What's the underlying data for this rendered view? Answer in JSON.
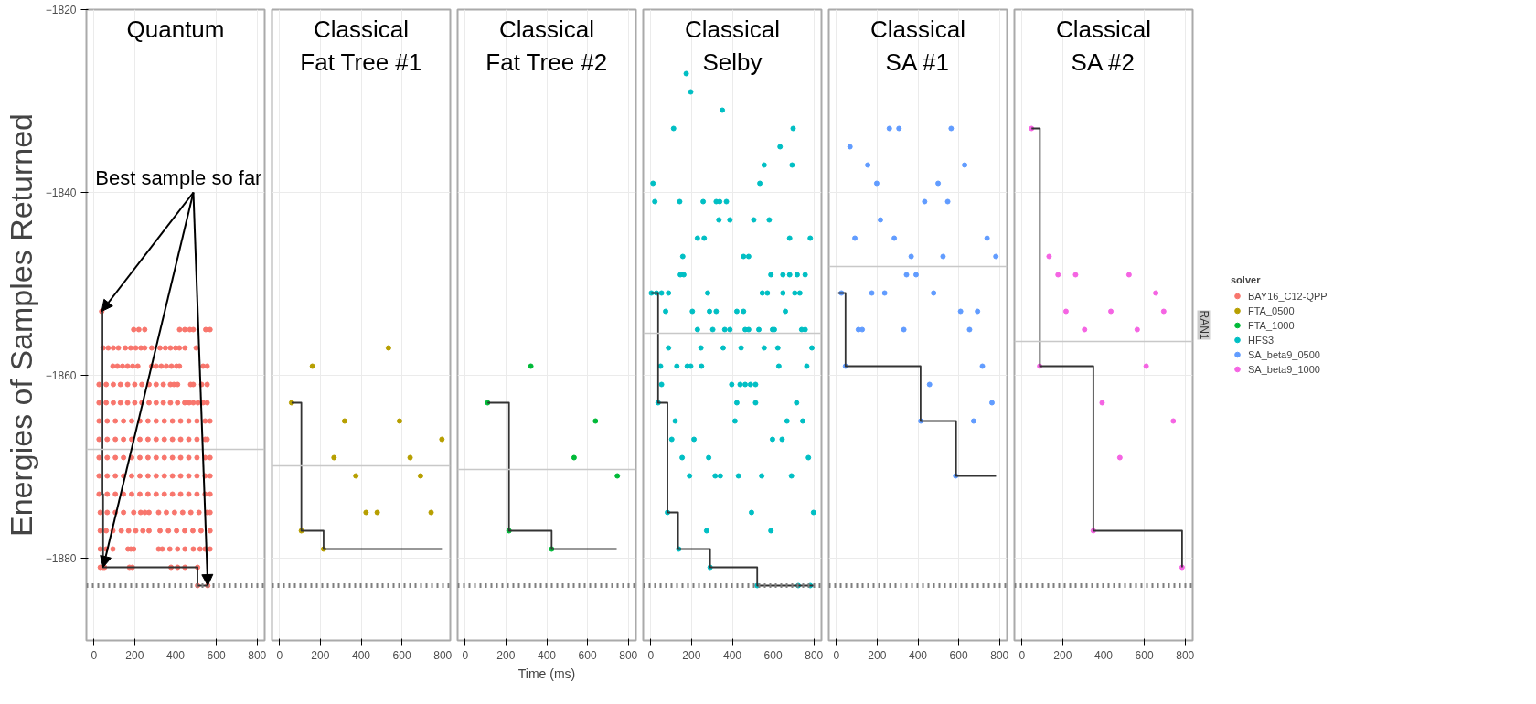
{
  "chart_data": [
    {
      "type": "scatter",
      "title": "Quantum",
      "ylabel": "Energies of Samples Returned",
      "xlim": [
        -37,
        837
      ],
      "ylim": [
        -1889,
        -1820
      ],
      "xticks": [
        0,
        200,
        400,
        600,
        800
      ],
      "yticks": [
        -1820,
        -1840,
        -1860,
        -1880
      ],
      "grid": true,
      "marker": "circle",
      "annotations": [
        {
          "text": "Best sample so far",
          "x": 558,
          "y": -1883
        }
      ],
      "series": [
        {
          "name": "BAY16_C12-QPP",
          "color": "#f8766d",
          "x": [
            38,
            195,
            220,
            249,
            420,
            445,
            470,
            487,
            548,
            569,
            45,
            70,
            95,
            120,
            154,
            180,
            205,
            230,
            249,
            283,
            324,
            350,
            375,
            400,
            419,
            446,
            501,
            93,
            115,
            140,
            165,
            190,
            215,
            283,
            305,
            330,
            355,
            380,
            405,
            419,
            535,
            555,
            25,
            60,
            95,
            130,
            165,
            200,
            235,
            270,
            305,
            340,
            375,
            392,
            410,
            474,
            487,
            528,
            555,
            25,
            60,
            95,
            130,
            165,
            200,
            235,
            270,
            305,
            340,
            375,
            410,
            445,
            467,
            487,
            510,
            535,
            555,
            25,
            65,
            105,
            145,
            185,
            225,
            265,
            305,
            345,
            385,
            425,
            465,
            505,
            545,
            569,
            25,
            65,
            105,
            145,
            185,
            225,
            265,
            305,
            345,
            385,
            425,
            465,
            505,
            545,
            555,
            25,
            65,
            105,
            145,
            185,
            225,
            265,
            305,
            345,
            385,
            425,
            465,
            505,
            545,
            569,
            25,
            65,
            105,
            145,
            185,
            225,
            265,
            305,
            345,
            385,
            425,
            465,
            505,
            545,
            569,
            25,
            65,
            105,
            145,
            185,
            225,
            265,
            305,
            345,
            385,
            425,
            465,
            505,
            545,
            569,
            31,
            65,
            105,
            145,
            195,
            229,
            250,
            270,
            317,
            355,
            395,
            435,
            475,
            515,
            555,
            569,
            31,
            60,
            93,
            134,
            170,
            205,
            240,
            270,
            324,
            365,
            405,
            445,
            485,
            525,
            569,
            31,
            60,
            93,
            167,
            181,
            195,
            317,
            335,
            372,
            410,
            446,
            487,
            520,
            545,
            569,
            31,
            45,
            52,
            174,
            188,
            378,
            410,
            446,
            508,
            508,
            558
          ],
          "values": [
            -1853,
            -1855,
            -1855,
            -1855,
            -1855,
            -1855,
            -1855,
            -1855,
            -1855,
            -1855,
            -1857,
            -1857,
            -1857,
            -1857,
            -1857,
            -1857,
            -1857,
            -1857,
            -1857,
            -1857,
            -1857,
            -1857,
            -1857,
            -1857,
            -1857,
            -1857,
            -1857,
            -1859,
            -1859,
            -1859,
            -1859,
            -1859,
            -1859,
            -1859,
            -1859,
            -1859,
            -1859,
            -1859,
            -1859,
            -1859,
            -1859,
            -1859,
            -1861,
            -1861,
            -1861,
            -1861,
            -1861,
            -1861,
            -1861,
            -1861,
            -1861,
            -1861,
            -1861,
            -1861,
            -1861,
            -1861,
            -1861,
            -1861,
            -1861,
            -1863,
            -1863,
            -1863,
            -1863,
            -1863,
            -1863,
            -1863,
            -1863,
            -1863,
            -1863,
            -1863,
            -1863,
            -1863,
            -1863,
            -1863,
            -1863,
            -1863,
            -1863,
            -1865,
            -1865,
            -1865,
            -1865,
            -1865,
            -1865,
            -1865,
            -1865,
            -1865,
            -1865,
            -1865,
            -1865,
            -1865,
            -1865,
            -1865,
            -1867,
            -1867,
            -1867,
            -1867,
            -1867,
            -1867,
            -1867,
            -1867,
            -1867,
            -1867,
            -1867,
            -1867,
            -1867,
            -1867,
            -1867,
            -1869,
            -1869,
            -1869,
            -1869,
            -1869,
            -1869,
            -1869,
            -1869,
            -1869,
            -1869,
            -1869,
            -1869,
            -1869,
            -1869,
            -1869,
            -1871,
            -1871,
            -1871,
            -1871,
            -1871,
            -1871,
            -1871,
            -1871,
            -1871,
            -1871,
            -1871,
            -1871,
            -1871,
            -1871,
            -1871,
            -1873,
            -1873,
            -1873,
            -1873,
            -1873,
            -1873,
            -1873,
            -1873,
            -1873,
            -1873,
            -1873,
            -1873,
            -1873,
            -1873,
            -1873,
            -1875,
            -1875,
            -1875,
            -1875,
            -1875,
            -1875,
            -1875,
            -1875,
            -1875,
            -1875,
            -1875,
            -1875,
            -1875,
            -1875,
            -1875,
            -1875,
            -1877,
            -1877,
            -1877,
            -1877,
            -1877,
            -1877,
            -1877,
            -1877,
            -1877,
            -1877,
            -1877,
            -1877,
            -1877,
            -1877,
            -1877,
            -1879,
            -1879,
            -1879,
            -1879,
            -1879,
            -1879,
            -1879,
            -1879,
            -1879,
            -1879,
            -1879,
            -1879,
            -1879,
            -1879,
            -1879,
            -1881,
            -1881,
            -1881,
            -1881,
            -1881,
            -1881,
            -1881,
            -1881,
            -1881,
            -1883,
            -1883
          ]
        },
        {
          "type": "step",
          "marker": "none",
          "color": "#333333",
          "x": [
            38,
            42,
            45,
            508,
            558
          ],
          "values": [
            -1853,
            -1873,
            -1881,
            -1883,
            -1883
          ]
        }
      ],
      "ref_lines": [
        {
          "axis": "y",
          "value": -1868.1,
          "color": "#c8c8c8",
          "line_style": "solid"
        },
        {
          "axis": "y",
          "value": -1883,
          "color": "#7f7f7f",
          "line_style": "dotted"
        }
      ]
    },
    {
      "type": "scatter",
      "title": "Classical\nFat Tree #1",
      "xlim": [
        -37,
        837
      ],
      "ylim": [
        -1889,
        -1820
      ],
      "xticks": [
        0,
        200,
        400,
        600,
        800
      ],
      "yticks": [
        -1820,
        -1840,
        -1860,
        -1880
      ],
      "grid": true,
      "marker": "circle",
      "tick_labels": "x",
      "series": [
        {
          "name": "FTA_0500",
          "color": "#b79f00",
          "x": [
            534,
            161,
            59,
            319,
            588,
            796,
            267,
            640,
            374,
            691,
            424,
            479,
            743,
            107,
            216
          ],
          "values": [
            -1857,
            -1859,
            -1863,
            -1865,
            -1865,
            -1867,
            -1869,
            -1869,
            -1871,
            -1871,
            -1875,
            -1875,
            -1875,
            -1877,
            -1879
          ]
        },
        {
          "type": "step",
          "marker": "none",
          "color": "#333333",
          "x": [
            59,
            107,
            216,
            796
          ],
          "values": [
            -1863,
            -1877,
            -1879,
            -1879
          ]
        }
      ],
      "ref_lines": [
        {
          "axis": "y",
          "value": -1869.9,
          "color": "#c8c8c8",
          "line_style": "solid"
        },
        {
          "axis": "y",
          "value": -1883,
          "color": "#7f7f7f",
          "line_style": "dotted"
        }
      ]
    },
    {
      "type": "scatter",
      "title": "Classical\nFat Tree #2",
      "xlabel": "Time (ms)",
      "xlim": [
        -37,
        837
      ],
      "ylim": [
        -1889,
        -1820
      ],
      "xticks": [
        0,
        200,
        400,
        600,
        800
      ],
      "yticks": [
        -1820,
        -1840,
        -1860,
        -1880
      ],
      "grid": true,
      "marker": "circle",
      "tick_labels": "x",
      "series": [
        {
          "name": "FTA_1000",
          "color": "#00ba38",
          "x": [
            322,
            110,
            639,
            534,
            746,
            215,
            424
          ],
          "values": [
            -1859,
            -1863,
            -1865,
            -1869,
            -1871,
            -1877,
            -1879
          ]
        },
        {
          "type": "step",
          "marker": "none",
          "color": "#333333",
          "x": [
            110,
            215,
            424,
            743
          ],
          "values": [
            -1863,
            -1877,
            -1879,
            -1879
          ]
        }
      ],
      "ref_lines": [
        {
          "axis": "y",
          "value": -1870.3,
          "color": "#c8c8c8",
          "line_style": "solid"
        },
        {
          "axis": "y",
          "value": -1883,
          "color": "#7f7f7f",
          "line_style": "dotted"
        }
      ]
    },
    {
      "type": "scatter",
      "title": "Classical\nSelby",
      "xlim": [
        -37,
        837
      ],
      "ylim": [
        -1889,
        -1820
      ],
      "xticks": [
        0,
        200,
        400,
        600,
        800
      ],
      "yticks": [
        -1820,
        -1840,
        -1860,
        -1880
      ],
      "grid": true,
      "marker": "circle",
      "tick_labels": "x",
      "series": [
        {
          "name": "HFS3",
          "color": "#00bfc4",
          "x": [
            174,
            196,
            351,
            112,
            698,
            634,
            556,
            693,
            11,
            535,
            20,
            142,
            257,
            321,
            338,
            371,
            334,
            388,
            505,
            581,
            229,
            262,
            681,
            782,
            157,
            455,
            480,
            145,
            162,
            589,
            648,
            681,
            718,
            757,
            3,
            28,
            53,
            87,
            279,
            547,
            572,
            648,
            706,
            731,
            73,
            204,
            288,
            321,
            422,
            455,
            660,
            229,
            304,
            363,
            388,
            463,
            480,
            530,
            597,
            606,
            740,
            757,
            87,
            246,
            355,
            443,
            556,
            623,
            790,
            48,
            128,
            179,
            196,
            249,
            628,
            765,
            53,
            397,
            438,
            463,
            489,
            514,
            36,
            422,
            514,
            715,
            120,
            413,
            668,
            745,
            103,
            212,
            597,
            644,
            154,
            284,
            773,
            190,
            316,
            341,
            430,
            544,
            690,
            82,
            494,
            798,
            274,
            589,
            137,
            291,
            522,
            723,
            782
          ],
          "values": [
            -1827,
            -1829,
            -1831,
            -1833,
            -1833,
            -1835,
            -1837,
            -1837,
            -1839,
            -1839,
            -1841,
            -1841,
            -1841,
            -1841,
            -1841,
            -1841,
            -1843,
            -1843,
            -1843,
            -1843,
            -1845,
            -1845,
            -1845,
            -1845,
            -1847,
            -1847,
            -1847,
            -1849,
            -1849,
            -1849,
            -1849,
            -1849,
            -1849,
            -1849,
            -1851,
            -1851,
            -1851,
            -1851,
            -1851,
            -1851,
            -1851,
            -1851,
            -1851,
            -1851,
            -1853,
            -1853,
            -1853,
            -1853,
            -1853,
            -1853,
            -1853,
            -1855,
            -1855,
            -1855,
            -1855,
            -1855,
            -1855,
            -1855,
            -1855,
            -1855,
            -1855,
            -1855,
            -1857,
            -1857,
            -1857,
            -1857,
            -1857,
            -1857,
            -1857,
            -1859,
            -1859,
            -1859,
            -1859,
            -1859,
            -1859,
            -1859,
            -1861,
            -1861,
            -1861,
            -1861,
            -1861,
            -1861,
            -1863,
            -1863,
            -1863,
            -1863,
            -1865,
            -1865,
            -1865,
            -1865,
            -1867,
            -1867,
            -1867,
            -1867,
            -1869,
            -1869,
            -1869,
            -1871,
            -1871,
            -1871,
            -1871,
            -1871,
            -1871,
            -1875,
            -1875,
            -1875,
            -1877,
            -1877,
            -1879,
            -1881,
            -1883,
            -1883,
            -1883
          ]
        },
        {
          "type": "step",
          "marker": "none",
          "color": "#333333",
          "x": [
            3,
            36,
            82,
            134,
            291,
            522,
            798
          ],
          "values": [
            -1851,
            -1863,
            -1875,
            -1879,
            -1881,
            -1883,
            -1883
          ]
        }
      ],
      "ref_lines": [
        {
          "axis": "y",
          "value": -1855.4,
          "color": "#c8c8c8",
          "line_style": "solid"
        },
        {
          "axis": "y",
          "value": -1883,
          "color": "#7f7f7f",
          "line_style": "dotted"
        }
      ]
    },
    {
      "type": "scatter",
      "title": "Classical\nSA #1",
      "xlim": [
        -37,
        837
      ],
      "ylim": [
        -1889,
        -1820
      ],
      "xticks": [
        0,
        200,
        400,
        600,
        800
      ],
      "yticks": [
        -1820,
        -1840,
        -1860,
        -1880
      ],
      "grid": true,
      "marker": "circle",
      "tick_labels": "x",
      "series": [
        {
          "name": "SA_beta9_0500",
          "color": "#619cff",
          "x": [
            260,
            307,
            563,
            67,
            154,
            629,
            198,
            499,
            433,
            546,
            216,
            91,
            284,
            739,
            367,
            523,
            782,
            344,
            391,
            25,
            174,
            237,
            477,
            609,
            692,
            108,
            127,
            331,
            653,
            45,
            716,
            457,
            763,
            414,
            673,
            585
          ],
          "values": [
            -1833,
            -1833,
            -1833,
            -1835,
            -1837,
            -1837,
            -1839,
            -1839,
            -1841,
            -1841,
            -1843,
            -1845,
            -1845,
            -1845,
            -1847,
            -1847,
            -1847,
            -1849,
            -1849,
            -1851,
            -1851,
            -1851,
            -1851,
            -1853,
            -1853,
            -1855,
            -1855,
            -1855,
            -1855,
            -1859,
            -1859,
            -1861,
            -1863,
            -1865,
            -1865,
            -1871
          ]
        },
        {
          "type": "step",
          "marker": "none",
          "color": "#333333",
          "x": [
            9,
            45,
            413,
            587,
            783
          ],
          "values": [
            -1851,
            -1859,
            -1865,
            -1871,
            -1871
          ]
        }
      ],
      "ref_lines": [
        {
          "axis": "y",
          "value": -1848.1,
          "color": "#c8c8c8",
          "line_style": "solid"
        },
        {
          "axis": "y",
          "value": -1883,
          "color": "#7f7f7f",
          "line_style": "dotted"
        }
      ]
    },
    {
      "type": "scatter",
      "title": "Classical\nSA #2",
      "xlim": [
        -37,
        837
      ],
      "ylim": [
        -1889,
        -1820
      ],
      "xticks": [
        0,
        200,
        400,
        600,
        800
      ],
      "yticks": [
        -1820,
        -1840,
        -1860,
        -1880
      ],
      "grid": true,
      "marker": "circle",
      "tick_labels": "x",
      "legend": "right",
      "legend_title": "solver",
      "annotations": [
        "RAN1"
      ],
      "series": [
        {
          "name": "SA_beta9_1000",
          "color": "#f564e3",
          "x": [
            47,
            133,
            177,
            263,
            525,
            656,
            216,
            436,
            695,
            307,
            565,
            87,
            609,
            393,
            742,
            480,
            350,
            785
          ],
          "values": [
            -1833,
            -1847,
            -1849,
            -1849,
            -1849,
            -1851,
            -1853,
            -1853,
            -1853,
            -1855,
            -1855,
            -1859,
            -1859,
            -1863,
            -1865,
            -1869,
            -1877,
            -1881
          ]
        },
        {
          "type": "step",
          "marker": "none",
          "color": "#333333",
          "x": [
            47,
            88,
            350,
            785
          ],
          "values": [
            -1833,
            -1859,
            -1877,
            -1881
          ]
        }
      ],
      "ref_lines": [
        {
          "axis": "y",
          "value": -1856.3,
          "color": "#c8c8c8",
          "line_style": "solid"
        },
        {
          "axis": "y",
          "value": -1883,
          "color": "#7f7f7f",
          "line_style": "dotted"
        }
      ]
    }
  ]
}
